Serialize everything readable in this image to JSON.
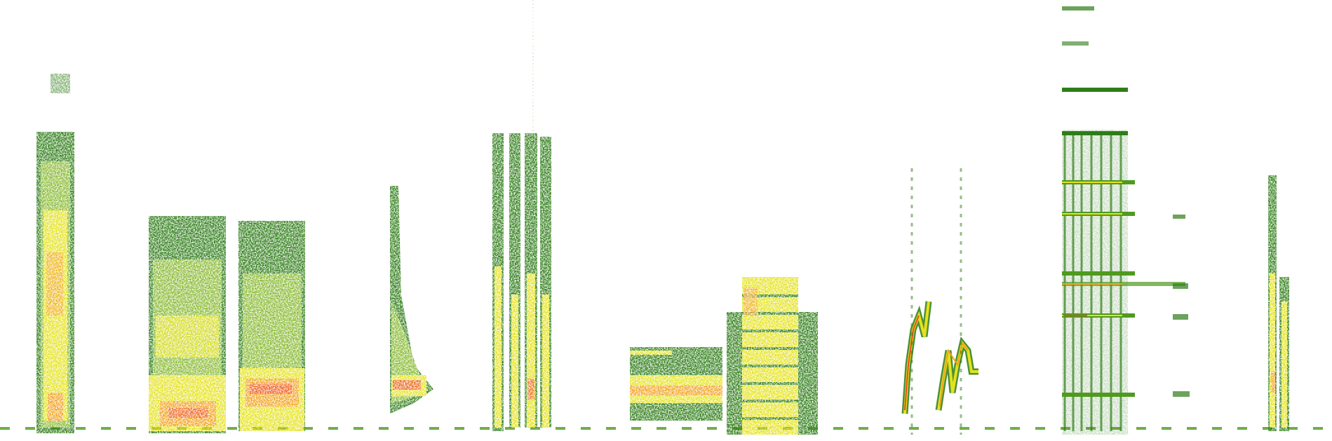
{
  "image": {
    "background": "#ffffff",
    "palette": {
      "dark_green": "#2e7d18",
      "green": "#4f9a1f",
      "light_green": "#86b92e",
      "yellow": "#e4e21a",
      "orange": "#f2a11c",
      "red": "#ee4a1e"
    }
  }
}
